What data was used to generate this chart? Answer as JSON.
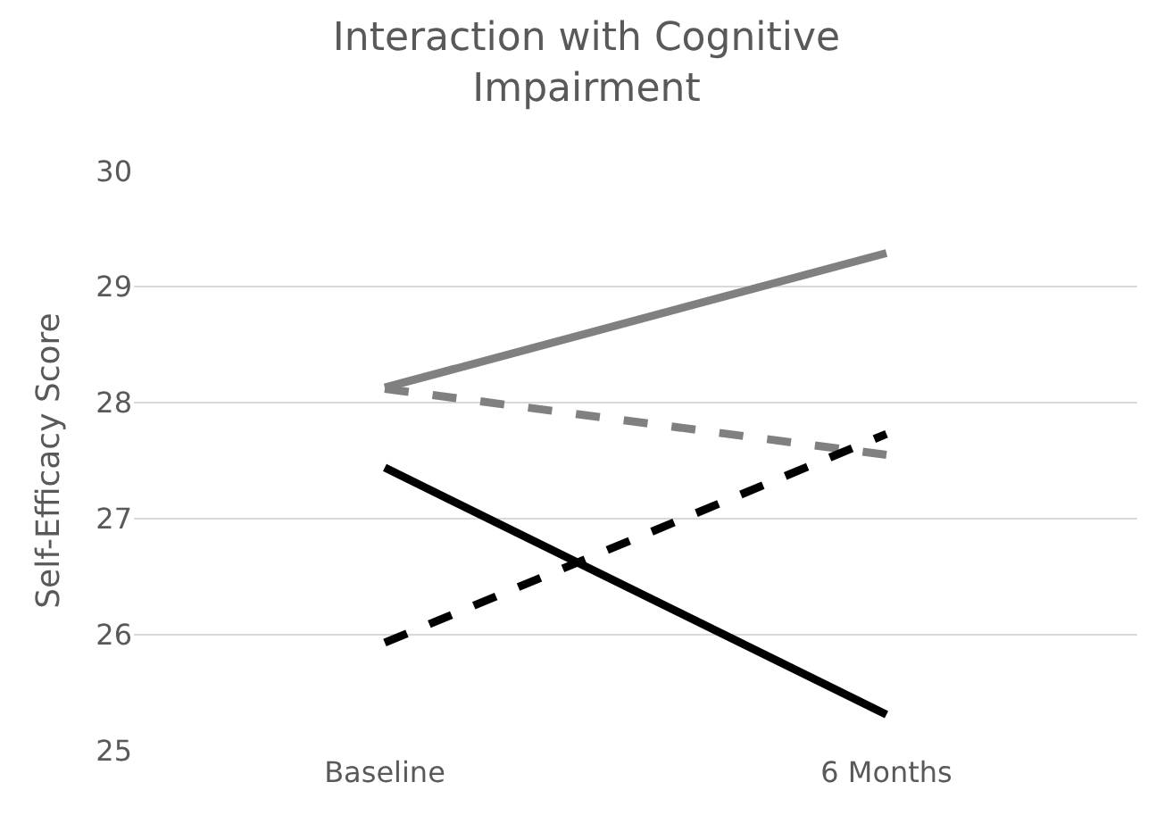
{
  "chart_data": {
    "type": "line",
    "title": "Interaction with Cognitive\nImpairment",
    "ylabel": "Self-Efficacy Score",
    "categories": [
      "Baseline",
      "6 Months"
    ],
    "series": [
      {
        "color": "#808080",
        "values": [
          28.13,
          29.29
        ],
        "line_style": "solid"
      },
      {
        "color": "#808080",
        "values": [
          28.12,
          27.55
        ],
        "line_style": "dashed"
      },
      {
        "color": "#000000",
        "values": [
          27.44,
          25.31
        ],
        "line_style": "solid"
      },
      {
        "color": "#000000",
        "values": [
          25.93,
          27.73
        ],
        "line_style": "dashed"
      }
    ],
    "ylim": [
      25,
      30
    ],
    "yticks": [
      25,
      26,
      27,
      28,
      29,
      30
    ],
    "grid": "y",
    "marker": "none"
  }
}
